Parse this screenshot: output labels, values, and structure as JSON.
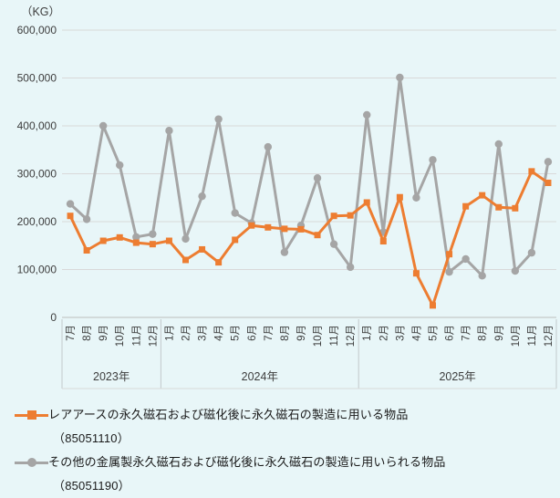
{
  "chart_data": {
    "type": "line",
    "unit_label": "（KG）",
    "grid": true,
    "legend_position": "bottom-left",
    "y_axis": {
      "min": 0,
      "max": 600000,
      "tick_step": 100000,
      "tick_labels": [
        "0",
        "100,000",
        "200,000",
        "300,000",
        "400,000",
        "500,000",
        "600,000"
      ]
    },
    "x_groups": [
      {
        "year": "2023年",
        "months": [
          "7月",
          "8月",
          "9月",
          "10月",
          "11月",
          "12月"
        ]
      },
      {
        "year": "2024年",
        "months": [
          "1月",
          "2月",
          "3月",
          "4月",
          "5月",
          "6月",
          "7月",
          "8月",
          "9月",
          "10月",
          "11月",
          "12月"
        ]
      },
      {
        "year": "2025年",
        "months": [
          "1月",
          "2月",
          "3月",
          "4月",
          "5月",
          "6月",
          "7月",
          "8月",
          "9月",
          "10月",
          "11月",
          "12月"
        ]
      }
    ],
    "series": [
      {
        "name": "レアアースの永久磁石および磁化後に永久磁石の製造に用いる物品",
        "code": "（85051110）",
        "color": "#ED7D31",
        "marker": "square",
        "values": [
          212000,
          140000,
          160000,
          167000,
          156000,
          153000,
          160000,
          120000,
          142000,
          115000,
          162000,
          192000,
          188000,
          185000,
          184000,
          172000,
          212000,
          213000,
          240000,
          159000,
          251000,
          92000,
          25000,
          132000,
          232000,
          255000,
          230000,
          228000,
          305000,
          281000
        ]
      },
      {
        "name": "その他の金属製永久磁石および磁化後に永久磁石の製造に用いられる物品",
        "code": "（85051190）",
        "color": "#A5A5A5",
        "marker": "circle",
        "values": [
          237000,
          205000,
          400000,
          318000,
          168000,
          174000,
          390000,
          164000,
          253000,
          414000,
          218000,
          197000,
          356000,
          136000,
          192000,
          291000,
          153000,
          105000,
          423000,
          178000,
          501000,
          250000,
          329000,
          95000,
          122000,
          87000,
          362000,
          97000,
          135000,
          325000
        ]
      }
    ],
    "colors": {
      "background": "#E8F6F8",
      "gridline": "#D9D9D9",
      "axis_line": "#BDBDBD",
      "separator": "#C2C9CB",
      "text": "#3D3D3D"
    }
  }
}
